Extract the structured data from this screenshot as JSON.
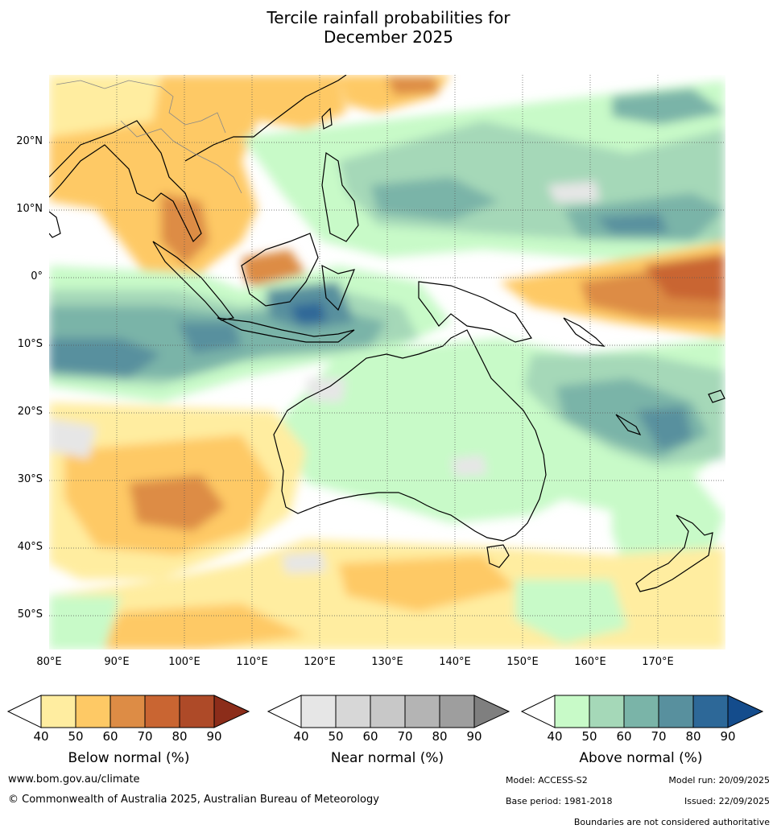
{
  "title_line1": "Tercile rainfall probabilities for",
  "title_line2": "December 2025",
  "map": {
    "projection": "lat-lon",
    "lon_range": [
      80,
      180
    ],
    "lat_range": [
      -55,
      30
    ],
    "lat_labels": [
      "20°N",
      "10°N",
      "0°",
      "10°S",
      "20°S",
      "30°S",
      "40°S",
      "50°S"
    ],
    "lon_labels": [
      "80°E",
      "90°E",
      "100°E",
      "110°E",
      "120°E",
      "130°E",
      "140°E",
      "150°E",
      "160°E",
      "170°E"
    ],
    "gridlines": "dotted"
  },
  "colorbars": [
    {
      "name": "below",
      "title": "Below normal (%)",
      "ticks": [
        "40",
        "50",
        "60",
        "70",
        "80",
        "90"
      ],
      "colors": [
        "#ffeda0",
        "#fec965",
        "#dd8c45",
        "#c96532",
        "#ae4a28",
        "#8c2d1a"
      ]
    },
    {
      "name": "near",
      "title": "Near normal (%)",
      "ticks": [
        "40",
        "50",
        "60",
        "70",
        "80",
        "90"
      ],
      "colors": [
        "#e6e6e6",
        "#d7d7d7",
        "#c8c8c8",
        "#b4b4b4",
        "#9e9e9e",
        "#7f7f7f"
      ]
    },
    {
      "name": "above",
      "title": "Above normal (%)",
      "ticks": [
        "40",
        "50",
        "60",
        "70",
        "80",
        "90"
      ],
      "colors": [
        "#c8fac8",
        "#a5d8b8",
        "#7ab4a8",
        "#58909e",
        "#2d6898",
        "#144c8c"
      ]
    }
  ],
  "footer": {
    "website": "www.bom.gov.au/climate",
    "copyright": "© Commonwealth of Australia 2025, Australian Bureau of Meteorology",
    "model": "Model: ACCESS-S2",
    "model_run": "Model run: 20/09/2025",
    "base_period": "Base period: 1981-2018",
    "issued": "Issued: 22/09/2025",
    "boundaries_note": "Boundaries are not considered authoritative"
  }
}
